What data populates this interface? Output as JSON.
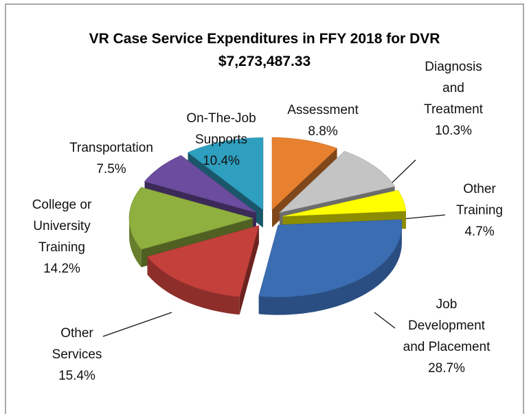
{
  "chart_data": {
    "type": "pie3d",
    "title": "VR Case Service Expenditures in FFY 2018 for DVR",
    "subtitle": "$7,273,487.33",
    "categories": [
      "Assessment",
      "Diagnosis and Treatment",
      "Other Training",
      "Job Development and Placement",
      "Other Services",
      "College or University Training",
      "Transportation",
      "On-The-Job Supports"
    ],
    "values": [
      8.8,
      10.3,
      4.7,
      28.7,
      15.4,
      14.2,
      7.5,
      10.4
    ],
    "value_labels": [
      "8.8%",
      "10.3%",
      "4.7%",
      "28.7%",
      "15.4%",
      "14.2%",
      "7.5%",
      "10.4%"
    ],
    "colors": [
      "#e8812f",
      "#c4c4c4",
      "#ffff00",
      "#3b6db3",
      "#c4403b",
      "#8faf3e",
      "#6b4c9e",
      "#2f9fc0"
    ]
  }
}
